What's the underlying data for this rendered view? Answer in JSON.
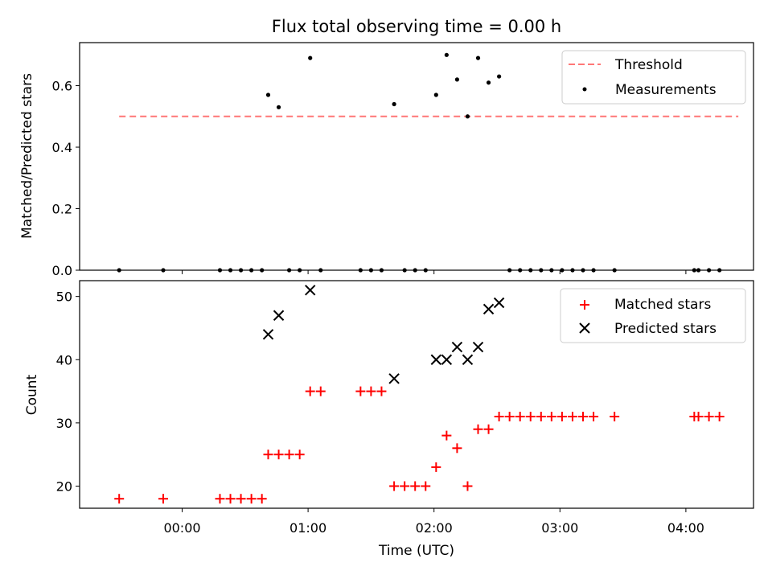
{
  "chart_data": [
    {
      "type": "scatter",
      "title": "Flux total observing time = 0.00 h",
      "ylabel": "Matched/Predicted stars",
      "xlabel": "",
      "ylim": [
        0,
        0.74
      ],
      "yticks": [
        "0.0",
        "0.2",
        "0.4",
        "0.6"
      ],
      "legend_position": "top-right",
      "threshold": {
        "name": "Threshold",
        "value": 0.5,
        "x_range": [
          "-00:30",
          "04:25"
        ],
        "color": "#ff7777",
        "style": "dashed"
      },
      "series": [
        {
          "name": "Measurements",
          "color": "#000000",
          "marker": "dot",
          "x": [
            "-00:30",
            "-00:09",
            "00:18",
            "00:23",
            "00:28",
            "00:33",
            "00:38",
            "00:41",
            "00:46",
            "00:51",
            "00:56",
            "01:01",
            "01:06",
            "01:25",
            "01:30",
            "01:35",
            "01:41",
            "01:46",
            "01:51",
            "01:56",
            "02:01",
            "02:06",
            "02:11",
            "02:16",
            "02:21",
            "02:26",
            "02:31",
            "02:36",
            "02:41",
            "02:46",
            "02:51",
            "02:56",
            "03:01",
            "03:06",
            "03:11",
            "03:16",
            "03:26",
            "04:04",
            "04:06",
            "04:11",
            "04:16"
          ],
          "y": [
            0,
            0,
            0,
            0,
            0,
            0,
            0,
            0.57,
            0.53,
            0,
            0,
            0.69,
            0,
            0,
            0,
            0,
            0.54,
            0,
            0,
            0,
            0.57,
            0.7,
            0.62,
            0.5,
            0.69,
            0.61,
            0.63,
            0,
            0,
            0,
            0,
            0,
            0,
            0,
            0,
            0,
            0,
            0,
            0,
            0,
            0
          ]
        }
      ]
    },
    {
      "type": "scatter",
      "title": "",
      "ylabel": "Count",
      "xlabel": "Time (UTC)",
      "ylim": [
        16.5,
        52.5
      ],
      "yticks": [
        "20",
        "30",
        "40",
        "50"
      ],
      "xticks": [
        "00:00",
        "01:00",
        "02:00",
        "03:00",
        "04:00"
      ],
      "legend_position": "top-right",
      "series": [
        {
          "name": "Matched stars",
          "color": "#ff0000",
          "marker": "plus",
          "x": [
            "-00:30",
            "-00:09",
            "00:18",
            "00:23",
            "00:28",
            "00:33",
            "00:38",
            "00:41",
            "00:46",
            "00:51",
            "00:56",
            "01:01",
            "01:06",
            "01:25",
            "01:30",
            "01:35",
            "01:41",
            "01:46",
            "01:51",
            "01:56",
            "02:01",
            "02:06",
            "02:11",
            "02:16",
            "02:21",
            "02:26",
            "02:31",
            "02:36",
            "02:41",
            "02:46",
            "02:51",
            "02:56",
            "03:01",
            "03:06",
            "03:11",
            "03:16",
            "03:26",
            "04:04",
            "04:06",
            "04:11",
            "04:16"
          ],
          "y": [
            18,
            18,
            18,
            18,
            18,
            18,
            18,
            25,
            25,
            25,
            25,
            35,
            35,
            35,
            35,
            35,
            20,
            20,
            20,
            20,
            23,
            28,
            26,
            20,
            29,
            29,
            31,
            31,
            31,
            31,
            31,
            31,
            31,
            31,
            31,
            31,
            31,
            31,
            31,
            31,
            31
          ]
        },
        {
          "name": "Predicted stars",
          "color": "#000000",
          "marker": "x",
          "x": [
            "00:41",
            "00:46",
            "01:01",
            "01:41",
            "02:01",
            "02:06",
            "02:11",
            "02:16",
            "02:21",
            "02:26",
            "02:31"
          ],
          "y": [
            44,
            47,
            51,
            37,
            40,
            40,
            42,
            40,
            42,
            48,
            49
          ]
        }
      ]
    }
  ]
}
